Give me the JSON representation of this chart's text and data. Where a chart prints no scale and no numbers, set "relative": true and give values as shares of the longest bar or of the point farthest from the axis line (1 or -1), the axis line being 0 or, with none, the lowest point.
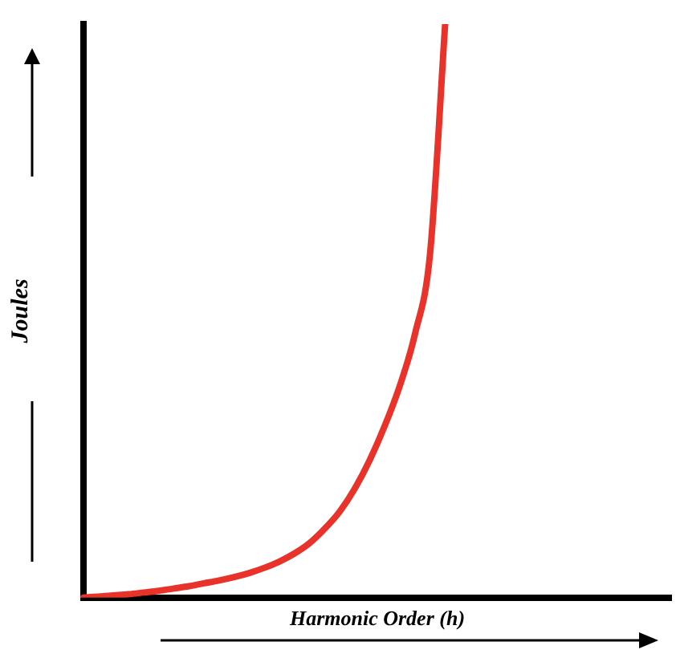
{
  "chart_data": {
    "type": "line",
    "relative": true,
    "xlabel": "Harmonic Order (h)",
    "ylabel": "Joules",
    "grid": false,
    "legend": false,
    "marker": "none",
    "line_style": "solid",
    "categories": [
      null,
      null,
      null,
      null,
      null,
      null,
      null,
      null,
      null,
      null,
      null,
      null,
      null,
      null,
      null,
      null,
      null,
      null,
      null,
      null,
      null,
      null,
      null,
      null,
      null,
      null,
      null,
      null,
      null,
      null,
      null,
      null,
      null,
      null,
      null,
      null,
      null,
      null,
      null,
      null
    ],
    "series": [
      {
        "color": "#e8322a",
        "values": [
          0,
          0.002,
          0.004,
          0.006,
          0.009,
          0.012,
          0.016,
          0.02,
          0.025,
          0.03,
          0.036,
          0.043,
          0.052,
          0.063,
          0.077,
          0.095,
          0.12,
          0.15,
          0.19,
          0.24,
          0.3,
          0.37,
          0.46,
          0.6,
          1.0,
          null,
          null,
          null,
          null,
          null,
          null,
          null,
          null,
          null,
          null,
          null,
          null,
          null,
          null,
          null
        ]
      }
    ]
  }
}
